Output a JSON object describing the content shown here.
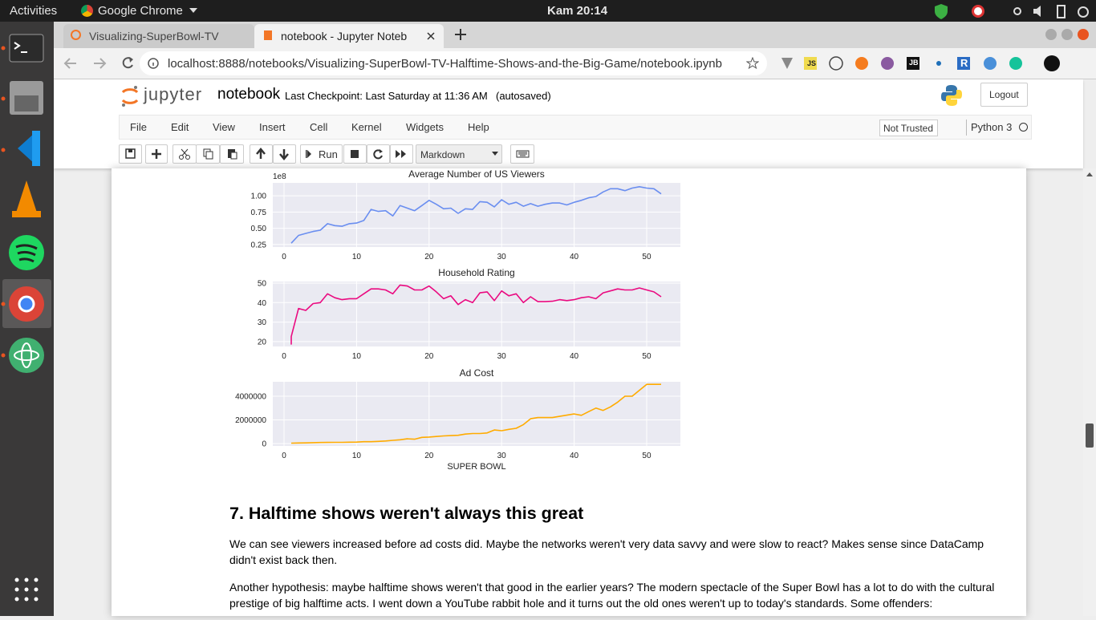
{
  "topbar": {
    "activities": "Activities",
    "app": "Google Chrome",
    "clock": "Kam 20:14"
  },
  "tabs": [
    {
      "title": "Visualizing-SuperBowl-TV"
    },
    {
      "title": "notebook - Jupyter Noteb"
    }
  ],
  "address": "localhost:8888/notebooks/Visualizing-SuperBowl-TV-Halftime-Shows-and-the-Big-Game/notebook.ipynb",
  "extensions": [
    "JS",
    "JB",
    "R"
  ],
  "header": {
    "logo": "jupyter",
    "notebook_name": "notebook",
    "checkpoint": "Last Checkpoint: Last Saturday at 11:36 AM",
    "autosave": "(autosaved)",
    "logout": "Logout"
  },
  "menu": [
    "File",
    "Edit",
    "View",
    "Insert",
    "Cell",
    "Kernel",
    "Widgets",
    "Help"
  ],
  "trust": "Not Trusted",
  "kernel": "Python 3",
  "toolbar": {
    "run": "Run",
    "cell_type": "Markdown"
  },
  "charts": [
    {
      "type": "line",
      "title": "Average Number of US Viewers",
      "offset_label": "1e8",
      "color": "#6a8ef0",
      "x": [
        1,
        2,
        3,
        4,
        5,
        6,
        7,
        8,
        9,
        10,
        11,
        12,
        13,
        14,
        15,
        16,
        17,
        18,
        19,
        20,
        21,
        22,
        23,
        24,
        25,
        26,
        27,
        28,
        29,
        30,
        31,
        32,
        33,
        34,
        35,
        36,
        37,
        38,
        39,
        40,
        41,
        42,
        43,
        44,
        45,
        46,
        47,
        48,
        49,
        50,
        51,
        52
      ],
      "values": [
        0.27,
        0.39,
        0.42,
        0.45,
        0.47,
        0.57,
        0.54,
        0.53,
        0.57,
        0.58,
        0.62,
        0.79,
        0.76,
        0.77,
        0.69,
        0.85,
        0.81,
        0.77,
        0.85,
        0.93,
        0.87,
        0.8,
        0.81,
        0.73,
        0.8,
        0.79,
        0.91,
        0.9,
        0.83,
        0.94,
        0.87,
        0.9,
        0.84,
        0.88,
        0.84,
        0.87,
        0.89,
        0.89,
        0.86,
        0.9,
        0.93,
        0.97,
        0.99,
        1.06,
        1.11,
        1.11,
        1.08,
        1.12,
        1.14,
        1.12,
        1.11,
        1.03
      ],
      "xlim": [
        -1.55,
        54.65
      ],
      "ylim": [
        0.21,
        1.2
      ],
      "xticks": [
        0,
        10,
        20,
        30,
        40,
        50
      ],
      "yticks": [
        {
          "value": 0.25,
          "label": "0.25"
        },
        {
          "value": 0.5,
          "label": "0.50"
        },
        {
          "value": 0.75,
          "label": "0.75"
        },
        {
          "value": 1,
          "label": "1.00"
        }
      ],
      "grid": true
    },
    {
      "type": "line",
      "title": "Household Rating",
      "color": "#ea0a80",
      "x": [
        1,
        1,
        2,
        3,
        4,
        5,
        6,
        7,
        8,
        9,
        10,
        11,
        12,
        13,
        14,
        15,
        16,
        17,
        18,
        19,
        20,
        21,
        22,
        23,
        24,
        25,
        26,
        27,
        28,
        29,
        30,
        31,
        32,
        33,
        34,
        35,
        36,
        37,
        38,
        39,
        40,
        41,
        42,
        43,
        44,
        45,
        46,
        47,
        48,
        49,
        50,
        51,
        52
      ],
      "values": [
        18.5,
        22.6,
        37,
        36,
        39.5,
        40,
        44.5,
        42.5,
        41.5,
        42,
        42,
        44.5,
        47,
        47,
        46.5,
        44.5,
        49,
        48.5,
        46.5,
        46.5,
        48.5,
        45.5,
        42,
        43.5,
        39,
        41.5,
        40,
        45,
        45.5,
        41,
        46,
        43.5,
        44.5,
        40,
        43,
        40.5,
        40.5,
        40.7,
        41.5,
        41,
        41.5,
        42.5,
        43,
        42,
        45,
        46,
        47,
        46.5,
        46.5,
        47.5,
        46.5,
        45.5,
        43
      ],
      "xlim": [
        -1.55,
        54.65
      ],
      "ylim": [
        17.5,
        50.8
      ],
      "xticks": [
        0,
        10,
        20,
        30,
        40,
        50
      ],
      "yticks": [
        20,
        30,
        40,
        50
      ],
      "grid": true
    },
    {
      "type": "line",
      "title": "Ad Cost",
      "xlabel": "SUPER BOWL",
      "color": "#ffab00",
      "x": [
        1,
        2,
        3,
        4,
        5,
        6,
        7,
        8,
        9,
        10,
        11,
        12,
        13,
        14,
        15,
        16,
        17,
        18,
        19,
        20,
        21,
        22,
        23,
        24,
        25,
        26,
        27,
        28,
        29,
        30,
        31,
        32,
        33,
        34,
        35,
        36,
        37,
        38,
        39,
        40,
        41,
        42,
        43,
        44,
        45,
        46,
        47,
        48,
        49,
        50,
        51,
        52
      ],
      "values": [
        40000,
        54000,
        55000,
        78000,
        88000,
        100000,
        103500,
        107000,
        120000,
        125000,
        162000,
        162000,
        185000,
        222000,
        275000,
        324300,
        400000,
        368200,
        525000,
        550000,
        600000,
        645000,
        675000,
        700000,
        800000,
        850000,
        850000,
        900000,
        1150000,
        1085000,
        1200000,
        1291100,
        1600000,
        2100000,
        2200000,
        2200000,
        2200000,
        2302200,
        2400000,
        2500000,
        2385365,
        2699963,
        3000000,
        2800000,
        3100000,
        3500000,
        4000000,
        4000000,
        4500000,
        5000000,
        5000000,
        5000000
      ],
      "xlim": [
        -1.55,
        54.65
      ],
      "ylim": [
        -200000,
        5220000
      ],
      "xticks": [
        0,
        10,
        20,
        30,
        40,
        50
      ],
      "yticks": [
        0,
        2000000,
        4000000
      ],
      "grid": true
    }
  ],
  "cell": {
    "heading": "7. Halftime shows weren't always this great",
    "paragraphs": [
      "We can see viewers increased before ad costs did. Maybe the networks weren't very data savvy and were slow to react? Makes sense since DataCamp didn't exist back then.",
      "Another hypothesis: maybe halftime shows weren't that good in the earlier years? The modern spectacle of the Super Bowl has a lot to do with the cultural prestige of big halftime acts. I went down a YouTube rabbit hole and it turns out the old ones weren't up to today's standards. Some offenders:"
    ]
  }
}
